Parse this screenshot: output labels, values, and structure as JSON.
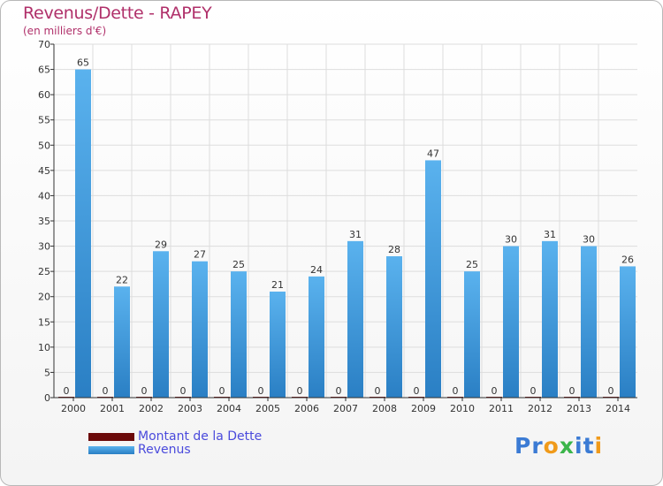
{
  "title": "Revenus/Dette - RAPEY",
  "subtitle": "(en milliers d'€)",
  "legend": [
    {
      "label": "Montant de la Dette",
      "color": "#6b0a0a"
    },
    {
      "label": "Revenus",
      "color": "#4aa3e6"
    }
  ],
  "logo": {
    "text": [
      "P",
      "r",
      "o",
      "x",
      "i",
      "t",
      "i"
    ],
    "colors": [
      "#3b7bd4",
      "#3b7bd4",
      "#f09a1a",
      "#3bb54a",
      "#3b7bd4",
      "#3b7bd4",
      "#f09a1a"
    ]
  },
  "colors": {
    "revenus_light": "#5ab2ee",
    "revenus_dark": "#2a7fc4",
    "dette": "#6b0a0a",
    "grid": "#dddddd",
    "axis": "#333333"
  },
  "chart_data": {
    "type": "bar",
    "title": "Revenus/Dette - RAPEY",
    "ylabel": "(en milliers d'€)",
    "xlabel": "",
    "ylim": [
      0,
      70
    ],
    "ytick_step": 5,
    "grid": true,
    "legend_position": "bottom-left",
    "categories": [
      "2000",
      "2001",
      "2002",
      "2003",
      "2004",
      "2005",
      "2006",
      "2007",
      "2008",
      "2009",
      "2010",
      "2011",
      "2012",
      "2013",
      "2014"
    ],
    "series": [
      {
        "name": "Montant de la Dette",
        "values": [
          0,
          0,
          0,
          0,
          0,
          0,
          0,
          0,
          0,
          0,
          0,
          0,
          0,
          0,
          0
        ]
      },
      {
        "name": "Revenus",
        "values": [
          65,
          22,
          29,
          27,
          25,
          21,
          24,
          31,
          28,
          47,
          25,
          30,
          31,
          30,
          26
        ]
      }
    ]
  }
}
